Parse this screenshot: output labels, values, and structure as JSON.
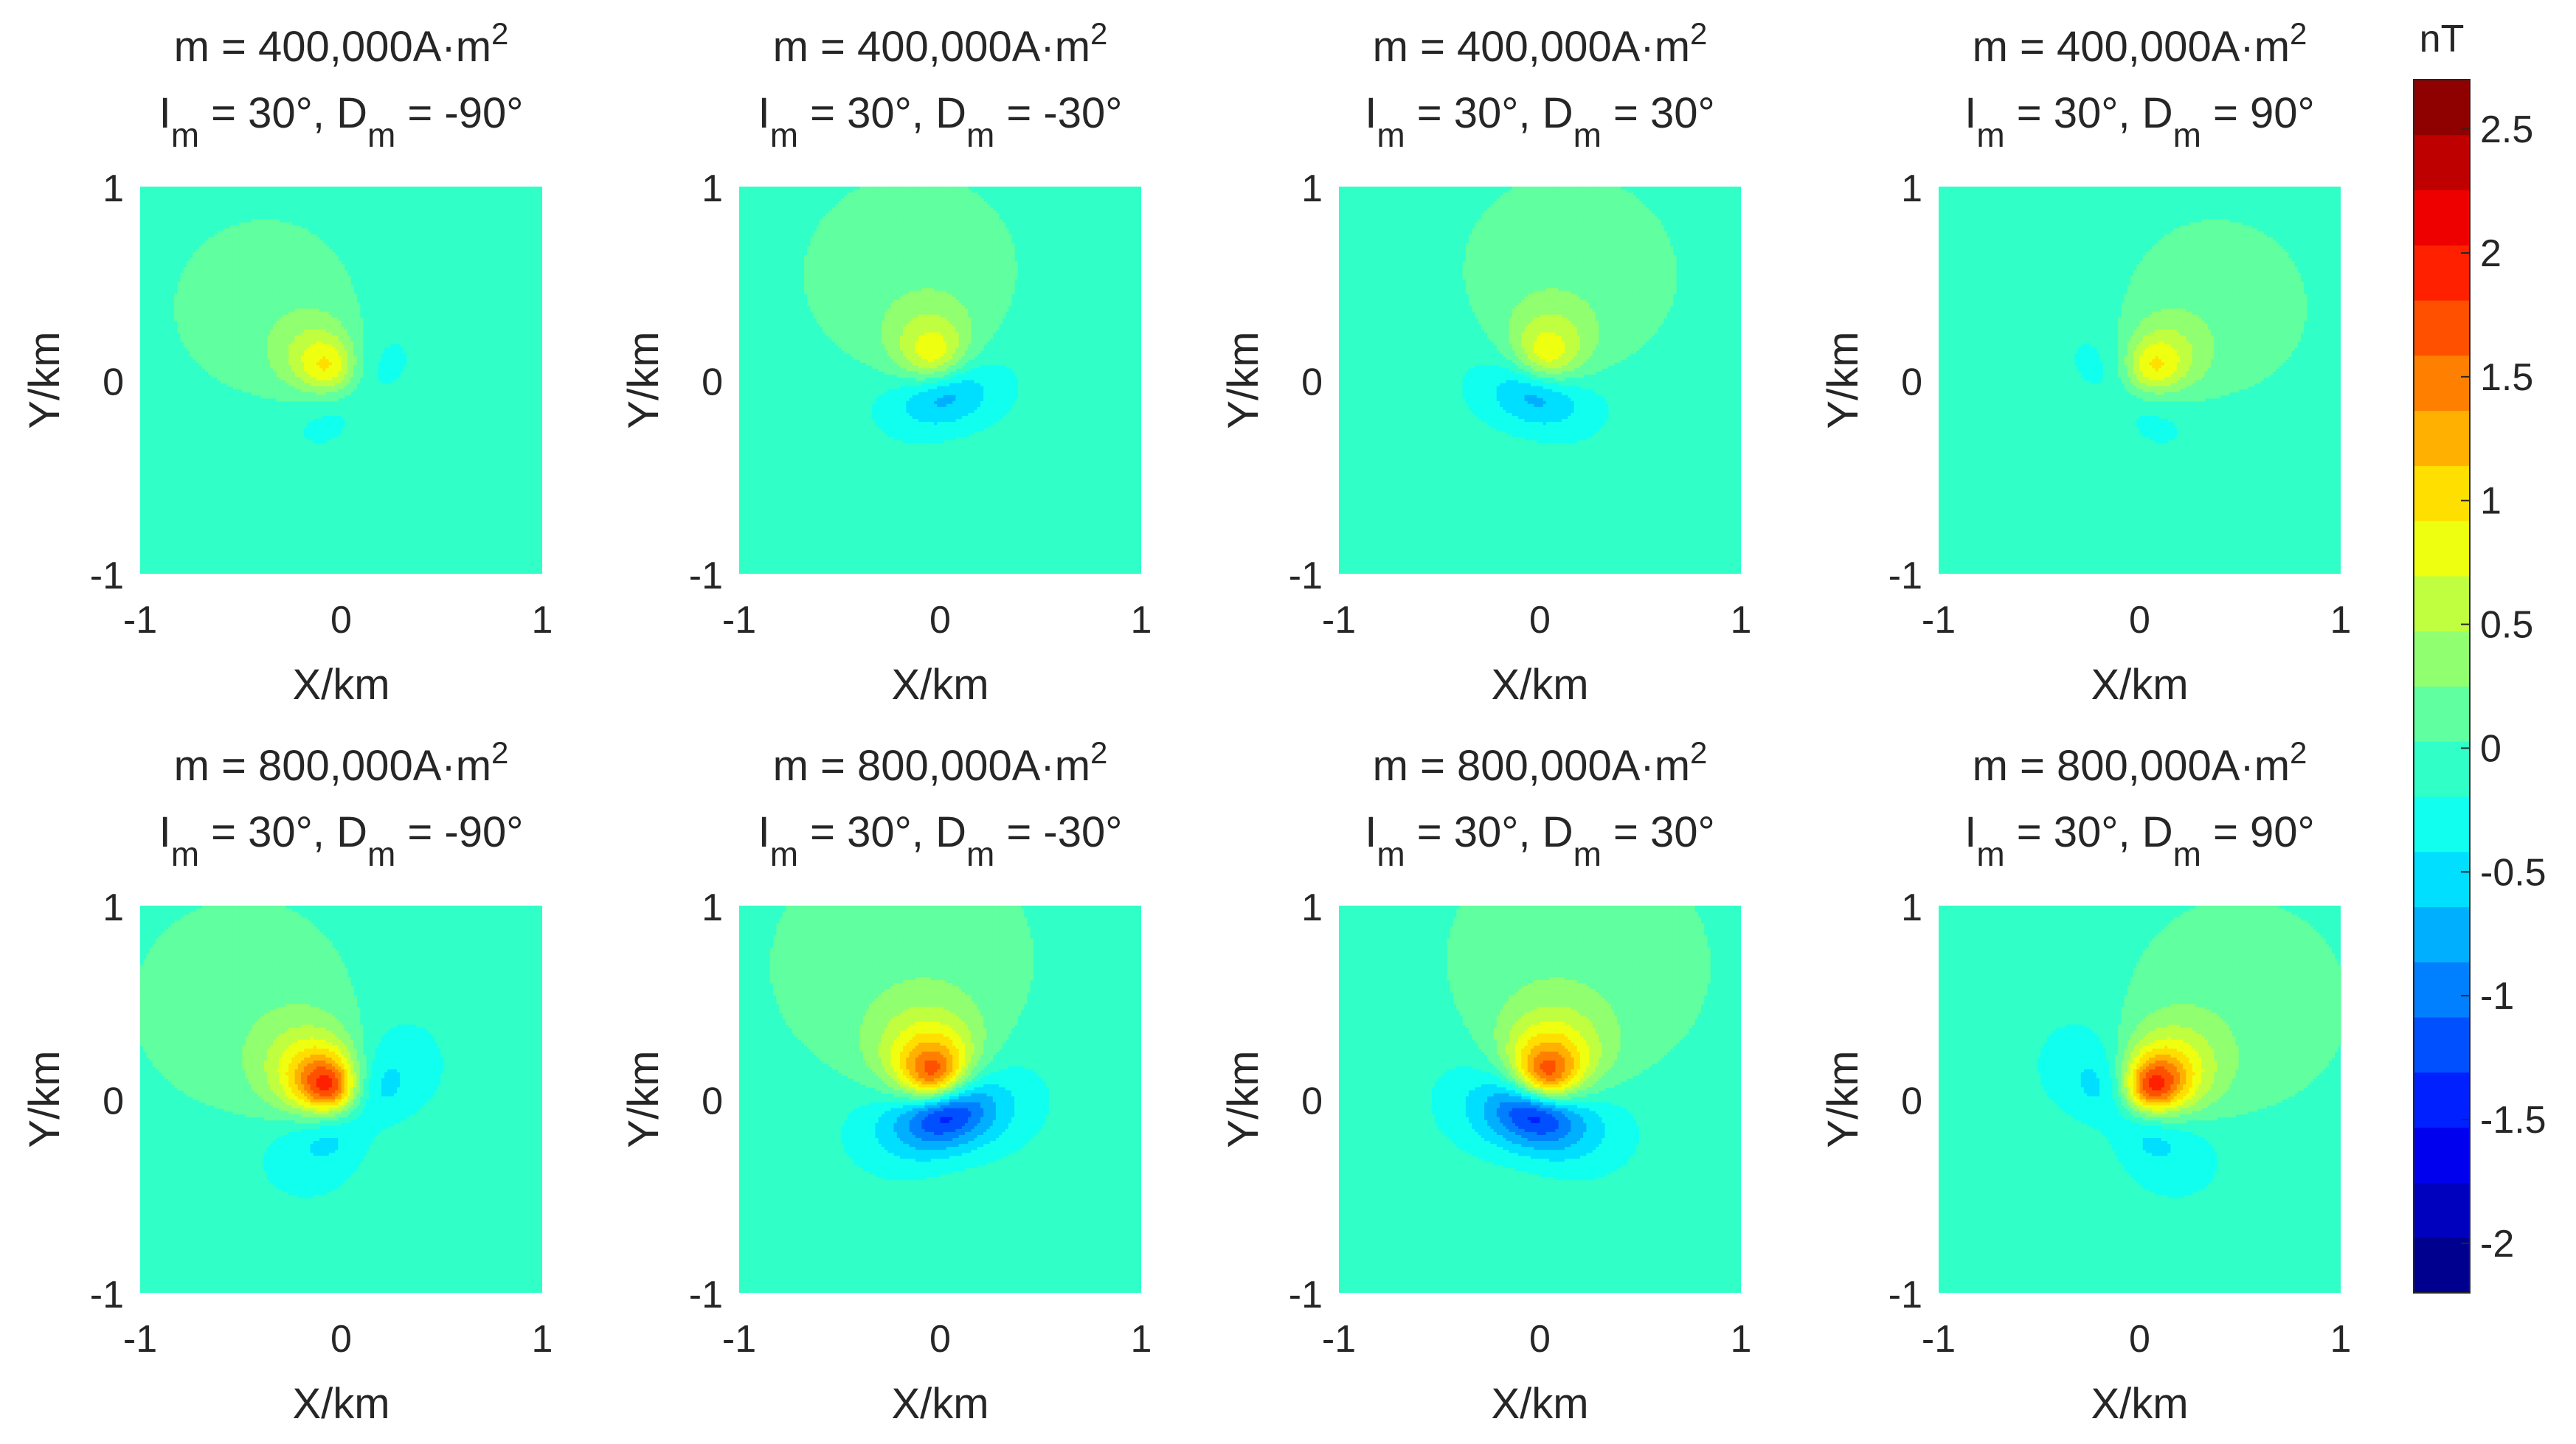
{
  "chart_data": {
    "type": "heatmap",
    "description_units": "nT",
    "colorbar": {
      "label": "nT",
      "min": -2.2,
      "max": 2.7,
      "levels": 20,
      "ticks": [
        {
          "value": 2.5,
          "label": "2.5"
        },
        {
          "value": 2,
          "label": "2"
        },
        {
          "value": 1.5,
          "label": "1.5"
        },
        {
          "value": 1,
          "label": "1"
        },
        {
          "value": 0.5,
          "label": "0.5"
        },
        {
          "value": 0,
          "label": "0"
        },
        {
          "value": -0.5,
          "label": "-0.5"
        },
        {
          "value": -1,
          "label": "-1"
        },
        {
          "value": -1.5,
          "label": "-1.5"
        },
        {
          "value": -2,
          "label": "-2"
        }
      ],
      "colors": [
        "#00008f",
        "#0000bf",
        "#0000ef",
        "#0020ff",
        "#0050ff",
        "#0080ff",
        "#00b0ff",
        "#00dfff",
        "#10ffef",
        "#30ffc8",
        "#60ff9f",
        "#90ff70",
        "#c0ff40",
        "#efff10",
        "#ffdf00",
        "#ffb000",
        "#ff8000",
        "#ff5000",
        "#ff2000",
        "#ef0000",
        "#bf0000",
        "#8f0000"
      ]
    },
    "xlabel": "X/km",
    "ylabel": "Y/km",
    "xlim": [
      -1,
      1
    ],
    "ylim": [
      -1,
      1
    ],
    "xticks": [
      "-1",
      "0",
      "1"
    ],
    "yticks": [
      "1",
      "0",
      "-1"
    ],
    "panels": [
      {
        "moment": "400,000",
        "inclination": "30°",
        "declination": "-90°",
        "m": 400000,
        "I": 30,
        "D": -90
      },
      {
        "moment": "400,000",
        "inclination": "30°",
        "declination": "-30°",
        "m": 400000,
        "I": 30,
        "D": -30
      },
      {
        "moment": "400,000",
        "inclination": "30°",
        "declination": "30°",
        "m": 400000,
        "I": 30,
        "D": 30
      },
      {
        "moment": "400,000",
        "inclination": "30°",
        "declination": "90°",
        "m": 400000,
        "I": 30,
        "D": 90
      },
      {
        "moment": "800,000",
        "inclination": "30°",
        "declination": "-90°",
        "m": 800000,
        "I": 30,
        "D": -90
      },
      {
        "moment": "800,000",
        "inclination": "30°",
        "declination": "-30°",
        "m": 800000,
        "I": 30,
        "D": -30
      },
      {
        "moment": "800,000",
        "inclination": "30°",
        "declination": "30°",
        "m": 800000,
        "I": 30,
        "D": 30
      },
      {
        "moment": "800,000",
        "inclination": "30°",
        "declination": "90°",
        "m": 800000,
        "I": 30,
        "D": 90
      }
    ],
    "title_template": {
      "m_prefix": "m = ",
      "unit": "A·m",
      "unit_exp": "2",
      "I_symbol": "I",
      "D_symbol": "D",
      "sub": "m",
      "eq": " = ",
      "sep": ", "
    }
  }
}
